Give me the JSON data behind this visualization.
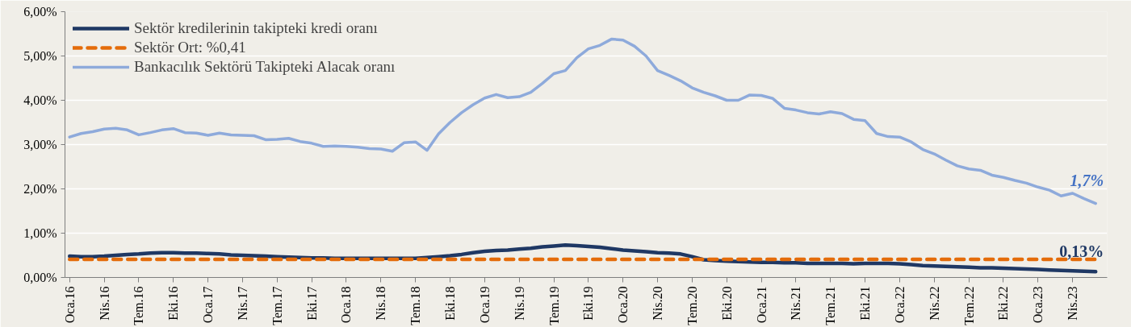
{
  "chart_data": {
    "type": "line",
    "x": [
      "2016-01",
      "2016-02",
      "2016-03",
      "2016-04",
      "2016-05",
      "2016-06",
      "2016-07",
      "2016-08",
      "2016-09",
      "2016-10",
      "2016-11",
      "2016-12",
      "2017-01",
      "2017-02",
      "2017-03",
      "2017-04",
      "2017-05",
      "2017-06",
      "2017-07",
      "2017-08",
      "2017-09",
      "2017-10",
      "2017-11",
      "2017-12",
      "2018-01",
      "2018-02",
      "2018-03",
      "2018-04",
      "2018-05",
      "2018-06",
      "2018-07",
      "2018-08",
      "2018-09",
      "2018-10",
      "2018-11",
      "2018-12",
      "2019-01",
      "2019-02",
      "2019-03",
      "2019-04",
      "2019-05",
      "2019-06",
      "2019-07",
      "2019-08",
      "2019-09",
      "2019-10",
      "2019-11",
      "2019-12",
      "2020-01",
      "2020-02",
      "2020-03",
      "2020-04",
      "2020-05",
      "2020-06",
      "2020-07",
      "2020-08",
      "2020-09",
      "2020-10",
      "2020-11",
      "2020-12",
      "2021-01",
      "2021-02",
      "2021-03",
      "2021-04",
      "2021-05",
      "2021-06",
      "2021-07",
      "2021-08",
      "2021-09",
      "2021-10",
      "2021-11",
      "2021-12",
      "2022-01",
      "2022-02",
      "2022-03",
      "2022-04",
      "2022-05",
      "2022-06",
      "2022-07",
      "2022-08",
      "2022-09",
      "2022-10",
      "2022-11",
      "2022-12",
      "2023-01",
      "2023-02",
      "2023-03",
      "2023-04",
      "2023-05",
      "2023-06"
    ],
    "series": [
      {
        "name": "Sektör kredilerinin takipteki kredi oranı",
        "color": "#1f3864",
        "line_style": "solid",
        "values": [
          0.48,
          0.47,
          0.47,
          0.48,
          0.5,
          0.52,
          0.53,
          0.55,
          0.56,
          0.56,
          0.55,
          0.55,
          0.54,
          0.53,
          0.51,
          0.5,
          0.49,
          0.48,
          0.47,
          0.46,
          0.45,
          0.44,
          0.44,
          0.43,
          0.43,
          0.43,
          0.43,
          0.43,
          0.43,
          0.43,
          0.43,
          0.45,
          0.47,
          0.49,
          0.52,
          0.56,
          0.59,
          0.61,
          0.62,
          0.64,
          0.66,
          0.69,
          0.71,
          0.73,
          0.72,
          0.7,
          0.68,
          0.65,
          0.62,
          0.6,
          0.58,
          0.56,
          0.55,
          0.53,
          0.47,
          0.4,
          0.38,
          0.37,
          0.36,
          0.35,
          0.34,
          0.34,
          0.33,
          0.33,
          0.32,
          0.32,
          0.32,
          0.32,
          0.31,
          0.32,
          0.32,
          0.32,
          0.31,
          0.29,
          0.27,
          0.26,
          0.25,
          0.24,
          0.23,
          0.22,
          0.22,
          0.21,
          0.2,
          0.19,
          0.18,
          0.17,
          0.16,
          0.15,
          0.14,
          0.13
        ]
      },
      {
        "name": "Sektör Ort: %0,41",
        "color": "#e46c0a",
        "line_style": "dashed",
        "values": [
          0.41,
          0.41,
          0.41,
          0.41,
          0.41,
          0.41,
          0.41,
          0.41,
          0.41,
          0.41,
          0.41,
          0.41,
          0.41,
          0.41,
          0.41,
          0.41,
          0.41,
          0.41,
          0.41,
          0.41,
          0.41,
          0.41,
          0.41,
          0.41,
          0.41,
          0.41,
          0.41,
          0.41,
          0.41,
          0.41,
          0.41,
          0.41,
          0.41,
          0.41,
          0.41,
          0.41,
          0.41,
          0.41,
          0.41,
          0.41,
          0.41,
          0.41,
          0.41,
          0.41,
          0.41,
          0.41,
          0.41,
          0.41,
          0.41,
          0.41,
          0.41,
          0.41,
          0.41,
          0.41,
          0.41,
          0.41,
          0.41,
          0.41,
          0.41,
          0.41,
          0.41,
          0.41,
          0.41,
          0.41,
          0.41,
          0.41,
          0.41,
          0.41,
          0.41,
          0.41,
          0.41,
          0.41,
          0.41,
          0.41,
          0.41,
          0.41,
          0.41,
          0.41,
          0.41,
          0.41,
          0.41,
          0.41,
          0.41,
          0.41,
          0.41,
          0.41,
          0.41,
          0.41,
          0.41,
          0.41
        ]
      },
      {
        "name": "Bankacılık Sektörü Takipteki Alacak oranı",
        "color": "#8eaadb",
        "line_style": "solid",
        "values": [
          3.17,
          3.25,
          3.29,
          3.35,
          3.37,
          3.33,
          3.22,
          3.27,
          3.33,
          3.36,
          3.27,
          3.26,
          3.21,
          3.26,
          3.22,
          3.21,
          3.2,
          3.11,
          3.12,
          3.14,
          3.07,
          3.03,
          2.96,
          2.97,
          2.96,
          2.94,
          2.91,
          2.9,
          2.85,
          3.04,
          3.06,
          2.87,
          3.24,
          3.5,
          3.72,
          3.9,
          4.05,
          4.13,
          4.06,
          4.08,
          4.18,
          4.38,
          4.6,
          4.67,
          4.96,
          5.16,
          5.24,
          5.38,
          5.36,
          5.22,
          5.0,
          4.67,
          4.56,
          4.44,
          4.28,
          4.18,
          4.1,
          4.0,
          4.0,
          4.12,
          4.11,
          4.04,
          3.82,
          3.78,
          3.72,
          3.69,
          3.74,
          3.7,
          3.57,
          3.54,
          3.25,
          3.18,
          3.17,
          3.06,
          2.89,
          2.79,
          2.65,
          2.52,
          2.45,
          2.42,
          2.31,
          2.26,
          2.19,
          2.13,
          2.04,
          1.97,
          1.84,
          1.9,
          1.78,
          1.67
        ]
      }
    ],
    "annotations": [
      {
        "text": "1,7%",
        "x": "2023-06",
        "y": 1.7
      },
      {
        "text": "0,13%",
        "x": "2023-06",
        "y": 0.13
      }
    ],
    "xlim": [
      "2016-01",
      "2023-07"
    ],
    "xticks": [
      {
        "value": "2016-01",
        "label": "Oca.16"
      },
      {
        "value": "2016-04",
        "label": "Nis.16"
      },
      {
        "value": "2016-07",
        "label": "Tem.16"
      },
      {
        "value": "2016-10",
        "label": "Eki.16"
      },
      {
        "value": "2017-01",
        "label": "Oca.17"
      },
      {
        "value": "2017-04",
        "label": "Nis.17"
      },
      {
        "value": "2017-07",
        "label": "Tem.17"
      },
      {
        "value": "2017-10",
        "label": "Eki.17"
      },
      {
        "value": "2018-01",
        "label": "Oca.18"
      },
      {
        "value": "2018-04",
        "label": "Nis.18"
      },
      {
        "value": "2018-07",
        "label": "Tem.18"
      },
      {
        "value": "2018-10",
        "label": "Eki.18"
      },
      {
        "value": "2019-01",
        "label": "Oca.19"
      },
      {
        "value": "2019-04",
        "label": "Nis.19"
      },
      {
        "value": "2019-07",
        "label": "Tem.19"
      },
      {
        "value": "2019-10",
        "label": "Eki.19"
      },
      {
        "value": "2020-01",
        "label": "Oca.20"
      },
      {
        "value": "2020-04",
        "label": "Nis.20"
      },
      {
        "value": "2020-07",
        "label": "Tem.20"
      },
      {
        "value": "2020-10",
        "label": "Eki.20"
      },
      {
        "value": "2021-01",
        "label": "Oca.21"
      },
      {
        "value": "2021-04",
        "label": "Nis.21"
      },
      {
        "value": "2021-07",
        "label": "Tem.21"
      },
      {
        "value": "2021-10",
        "label": "Eki.21"
      },
      {
        "value": "2022-01",
        "label": "Oca.22"
      },
      {
        "value": "2022-04",
        "label": "Nis.22"
      },
      {
        "value": "2022-07",
        "label": "Tem.22"
      },
      {
        "value": "2022-10",
        "label": "Eki.22"
      },
      {
        "value": "2023-01",
        "label": "Oca.23"
      },
      {
        "value": "2023-04",
        "label": "Nis.23"
      }
    ],
    "ylim": [
      0,
      6
    ],
    "yticks": [
      {
        "value": 0,
        "label": "0,00%"
      },
      {
        "value": 1,
        "label": "1,00%"
      },
      {
        "value": 2,
        "label": "2,00%"
      },
      {
        "value": 3,
        "label": "3,00%"
      },
      {
        "value": 4,
        "label": "4,00%"
      },
      {
        "value": 5,
        "label": "5,00%"
      },
      {
        "value": 6,
        "label": "6,00%"
      }
    ],
    "grid": "y",
    "legend": "top left",
    "marker": "none"
  }
}
